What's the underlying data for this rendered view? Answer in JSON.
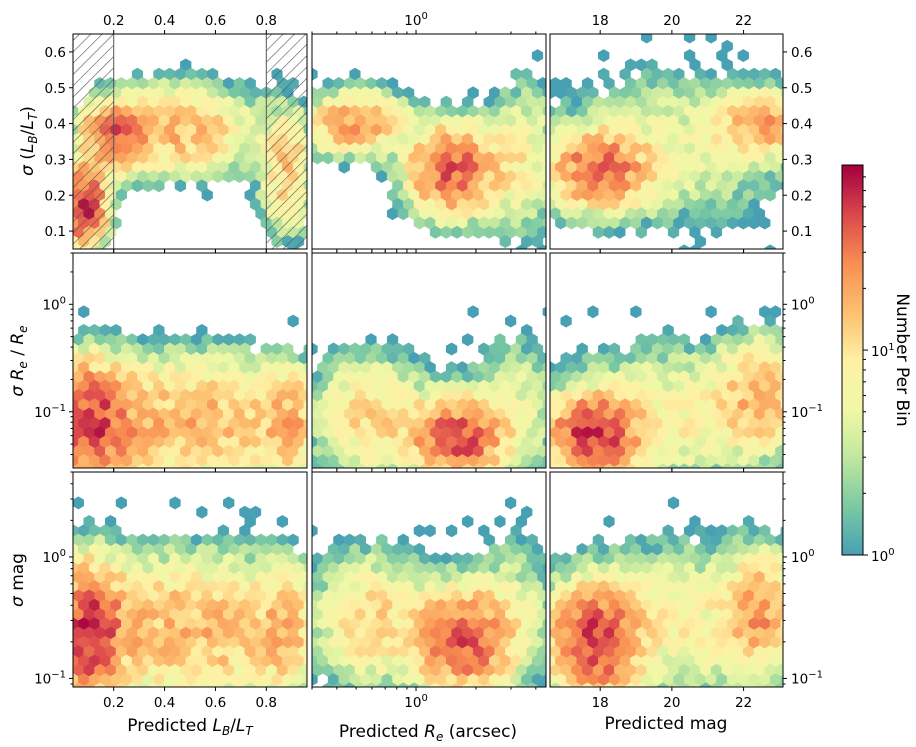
{
  "chart_data": {
    "type": "heatmap",
    "subtype": "hexbin-grid",
    "colormap": "Spectral_r",
    "grid": false,
    "legend_placement": "right",
    "colorbar": {
      "label": "Number Per Bin",
      "scale": "log",
      "range": [
        1,
        80
      ],
      "tick_labels": [
        "10^0",
        "10^1"
      ]
    },
    "columns": [
      {
        "xlabel": "Predicted L_B/L_T",
        "xscale": "linear",
        "xlim": [
          0.04,
          0.96
        ],
        "tick_values": [
          0.2,
          0.4,
          0.6,
          0.8
        ],
        "tick_labels": [
          "0.2",
          "0.4",
          "0.6",
          "0.8"
        ],
        "top_tick_labels": [
          "0.2",
          "0.4",
          "0.6",
          "0.8"
        ]
      },
      {
        "xlabel": "Predicted R_e (arcsec)",
        "xscale": "log",
        "xlim": [
          0.3,
          4.5
        ],
        "tick_values": [
          1
        ],
        "tick_labels": [
          "10^0"
        ],
        "top_tick_labels": [
          "10^0"
        ]
      },
      {
        "xlabel": "Predicted mag",
        "xscale": "linear",
        "xlim": [
          16.6,
          23.1
        ],
        "tick_values": [
          18,
          20,
          22
        ],
        "tick_labels": [
          "18",
          "20",
          "22"
        ],
        "top_tick_labels": [
          "18",
          "20",
          "22"
        ]
      }
    ],
    "rows": [
      {
        "ylabel": "σ (L_B/L_T)",
        "yscale": "linear",
        "ylim": [
          0.05,
          0.65
        ],
        "tick_values": [
          0.1,
          0.2,
          0.3,
          0.4,
          0.5,
          0.6
        ],
        "tick_labels": [
          "0.1",
          "0.2",
          "0.3",
          "0.4",
          "0.5",
          "0.6"
        ]
      },
      {
        "ylabel": "σ R_e / R_e",
        "yscale": "log",
        "ylim": [
          0.03,
          3.0
        ],
        "tick_values": [
          0.1,
          1
        ],
        "tick_labels": [
          "10^-1",
          "10^0"
        ]
      },
      {
        "ylabel": "σ mag",
        "yscale": "log",
        "ylim": [
          0.085,
          5.0
        ],
        "tick_values": [
          0.1,
          1
        ],
        "tick_labels": [
          "10^-1",
          "10^0"
        ]
      }
    ],
    "hatched_regions_column0_x": [
      [
        0.04,
        0.2
      ],
      [
        0.8,
        0.96
      ]
    ],
    "density_clusters": {
      "r0c0": [
        {
          "x": 0.08,
          "y": 0.17,
          "sx": 0.05,
          "sy": 0.06,
          "peak": 60
        },
        {
          "x": 0.2,
          "y": 0.36,
          "sx": 0.07,
          "sy": 0.05,
          "peak": 35
        },
        {
          "x": 0.45,
          "y": 0.38,
          "sx": 0.18,
          "sy": 0.07,
          "peak": 18
        },
        {
          "x": 0.88,
          "y": 0.27,
          "sx": 0.06,
          "sy": 0.1,
          "peak": 14
        }
      ],
      "r0c1": [
        {
          "x": 1.55,
          "y": 0.27,
          "sx": 0.35,
          "sy": 0.07,
          "peak": 40
        },
        {
          "x": 0.5,
          "y": 0.4,
          "sx": 0.4,
          "sy": 0.05,
          "peak": 22
        },
        {
          "x": 3.5,
          "y": 0.3,
          "sx": 0.3,
          "sy": 0.12,
          "peak": 8
        }
      ],
      "r0c2": [
        {
          "x": 18.0,
          "y": 0.27,
          "sx": 0.8,
          "sy": 0.06,
          "peak": 35
        },
        {
          "x": 22.5,
          "y": 0.4,
          "sx": 0.7,
          "sy": 0.05,
          "peak": 20
        },
        {
          "x": 20.0,
          "y": 0.33,
          "sx": 2.0,
          "sy": 0.12,
          "peak": 6
        }
      ],
      "r1c0": [
        {
          "x": 0.1,
          "y": 0.08,
          "sx": 0.1,
          "sy": 0.35,
          "peak": 45
        },
        {
          "x": 0.5,
          "y": 0.08,
          "sx": 0.3,
          "sy": 0.4,
          "peak": 18
        },
        {
          "x": 0.9,
          "y": 0.08,
          "sx": 0.06,
          "sy": 0.3,
          "peak": 14
        }
      ],
      "r1c1": [
        {
          "x": 1.6,
          "y": 0.055,
          "sx": 0.35,
          "sy": 0.2,
          "peak": 45
        },
        {
          "x": 0.6,
          "y": 0.09,
          "sx": 0.5,
          "sy": 0.35,
          "peak": 12
        },
        {
          "x": 3.0,
          "y": 0.1,
          "sx": 0.4,
          "sy": 0.5,
          "peak": 6
        }
      ],
      "r1c2": [
        {
          "x": 17.8,
          "y": 0.06,
          "sx": 0.7,
          "sy": 0.2,
          "peak": 55
        },
        {
          "x": 22.5,
          "y": 0.15,
          "sx": 0.7,
          "sy": 0.3,
          "peak": 18
        },
        {
          "x": 20.0,
          "y": 0.09,
          "sx": 2.0,
          "sy": 0.45,
          "peak": 8
        }
      ],
      "r2c0": [
        {
          "x": 0.1,
          "y": 0.24,
          "sx": 0.08,
          "sy": 0.35,
          "peak": 50
        },
        {
          "x": 0.5,
          "y": 0.25,
          "sx": 0.3,
          "sy": 0.4,
          "peak": 18
        },
        {
          "x": 0.88,
          "y": 0.25,
          "sx": 0.06,
          "sy": 0.3,
          "peak": 12
        }
      ],
      "r2c1": [
        {
          "x": 1.7,
          "y": 0.2,
          "sx": 0.35,
          "sy": 0.25,
          "peak": 40
        },
        {
          "x": 0.6,
          "y": 0.3,
          "sx": 0.5,
          "sy": 0.35,
          "peak": 12
        },
        {
          "x": 3.0,
          "y": 0.3,
          "sx": 0.35,
          "sy": 0.45,
          "peak": 6
        }
      ],
      "r2c2": [
        {
          "x": 17.8,
          "y": 0.2,
          "sx": 0.7,
          "sy": 0.25,
          "peak": 50
        },
        {
          "x": 22.5,
          "y": 0.35,
          "sx": 0.6,
          "sy": 0.3,
          "peak": 20
        },
        {
          "x": 20.0,
          "y": 0.28,
          "sx": 2.0,
          "sy": 0.45,
          "peak": 8
        }
      ]
    }
  }
}
